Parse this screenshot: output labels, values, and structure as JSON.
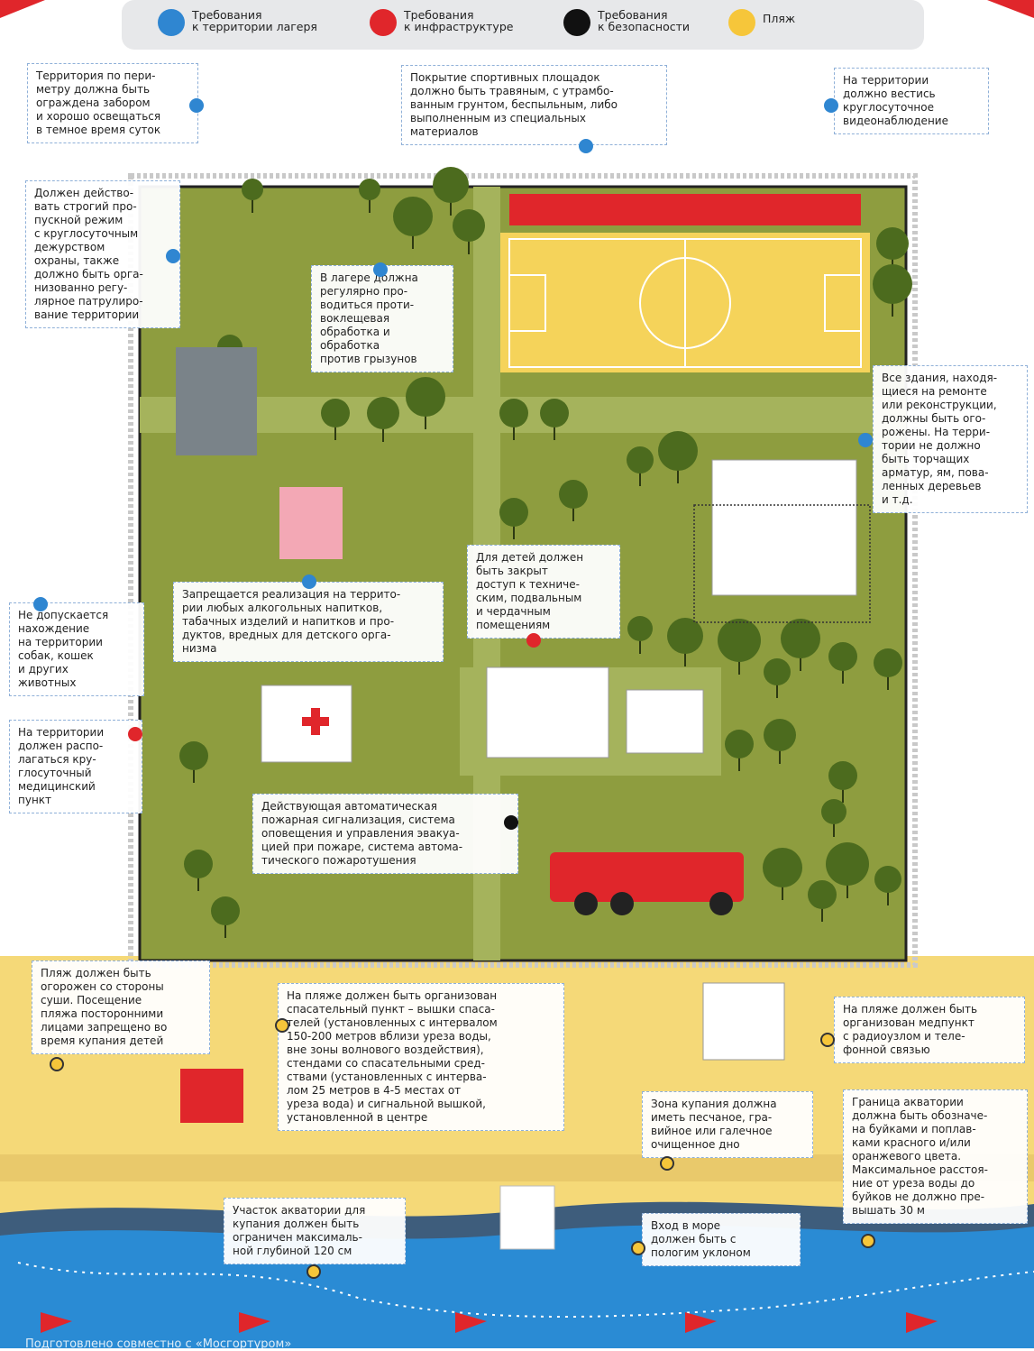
{
  "legend": [
    {
      "label": [
        "Требования",
        "к территории лагеря"
      ],
      "color": "#2f86d1"
    },
    {
      "label": [
        "Требования",
        "к инфраструктуре"
      ],
      "color": "#e0262b"
    },
    {
      "label": [
        "Требования",
        "к безопасности"
      ],
      "color": "#111111"
    },
    {
      "label": [
        "Пляж"
      ],
      "color": "#f6c63a"
    }
  ],
  "callouts": [
    {
      "lines": [
        "Территория по пери-",
        "метру должна быть",
        "ограждена забором",
        "и хорошо освещаться",
        "в темное время суток"
      ]
    },
    {
      "lines": [
        "Покрытие спортивных площадок",
        "должно быть травяным, с утрамбо-",
        "ванным грунтом, беспыльным, либо",
        "выполненным из специальных",
        "материалов"
      ]
    },
    {
      "lines": [
        "На территории",
        "должно вестись",
        "круглосуточное",
        "видеонаблюдение"
      ]
    },
    {
      "lines": [
        "Должен действо-",
        "вать строгий про-",
        "пускной режим",
        "с круглосуточным",
        "дежурством",
        "охраны, также",
        "должно быть орга-",
        "низованно регу-",
        "лярное патрулиро-",
        "вание территории"
      ]
    },
    {
      "lines": [
        "В лагере должна",
        "регулярно про-",
        "водиться проти-",
        "воклещевая",
        "обработка и",
        "обработка",
        "против грызунов"
      ]
    },
    {
      "lines": [
        "Все здания, находя-",
        "щиеся на ремонте",
        "или реконструкции,",
        "должны быть ого-",
        "рожены. На терри-",
        "тории не должно",
        "быть торчащих",
        "арматур, ям, пова-",
        "ленных деревьев",
        "и т.д."
      ]
    },
    {
      "lines": [
        "Для детей должен",
        "быть закрыт",
        "доступ к техниче-",
        "ским, подвальным",
        "и чердачным",
        "помещениям"
      ]
    },
    {
      "lines": [
        "Запрещается реализация на террито-",
        "рии любых алкогольных напитков,",
        "табачных изделий и напитков и про-",
        "дуктов, вредных для детского орга-",
        "низма"
      ]
    },
    {
      "lines": [
        "Не допускается",
        "нахождение",
        "на территории",
        "собак, кошек",
        "и других",
        "животных"
      ]
    },
    {
      "lines": [
        "На территории",
        "должен распо-",
        "лагаться кру-",
        "глосуточный",
        "медицинский",
        "пункт"
      ]
    },
    {
      "lines": [
        "Действующая автоматическая",
        "пожарная сигнализация, система",
        "оповещения и управления эвакуа-",
        "цией при пожаре, система автома-",
        "тического пожаротушения"
      ]
    },
    {
      "lines": [
        "Пляж должен быть",
        "огорожен со стороны",
        "суши. Посещение",
        "пляжа посторонними",
        "лицами запрещено во",
        "время купания детей"
      ]
    },
    {
      "lines": [
        "На пляже должен быть организован",
        "спасательный пункт – вышки спаса-",
        "телей (установленных с интервалом",
        "150-200 метров вблизи уреза воды,",
        "вне зоны волнового воздействия),",
        "стендами со спасательными сред-",
        "ствами (установленных с интерва-",
        "лом 25 метров в 4-5 местах от",
        "уреза вода) и сигнальной вышкой,",
        "установленной в центре"
      ]
    },
    {
      "lines": [
        "На пляже должен быть",
        "организован медпункт",
        "с радиоузлом и теле-",
        "фонной связью"
      ]
    },
    {
      "lines": [
        "Зона купания должна",
        "иметь песчаное, гра-",
        "вийное или галечное",
        "очищенное дно"
      ]
    },
    {
      "lines": [
        "Граница акватории",
        "должна быть обозначе-",
        "на буйками и поплав-",
        "ками красного и/или",
        "оранжевого цвета.",
        "Максимальное расстоя-",
        "ние от уреза воды до",
        "буйков не должно пре-",
        "вышать 30 м"
      ]
    },
    {
      "lines": [
        "Участок акватории для",
        "купания должен быть",
        "ограничен максималь-",
        "ной глубиной 120 см"
      ]
    },
    {
      "lines": [
        "Вход в море",
        "должен быть с",
        "пологим уклоном"
      ]
    }
  ],
  "footer": "Подготовлено совместно с «Мосгортуром»"
}
